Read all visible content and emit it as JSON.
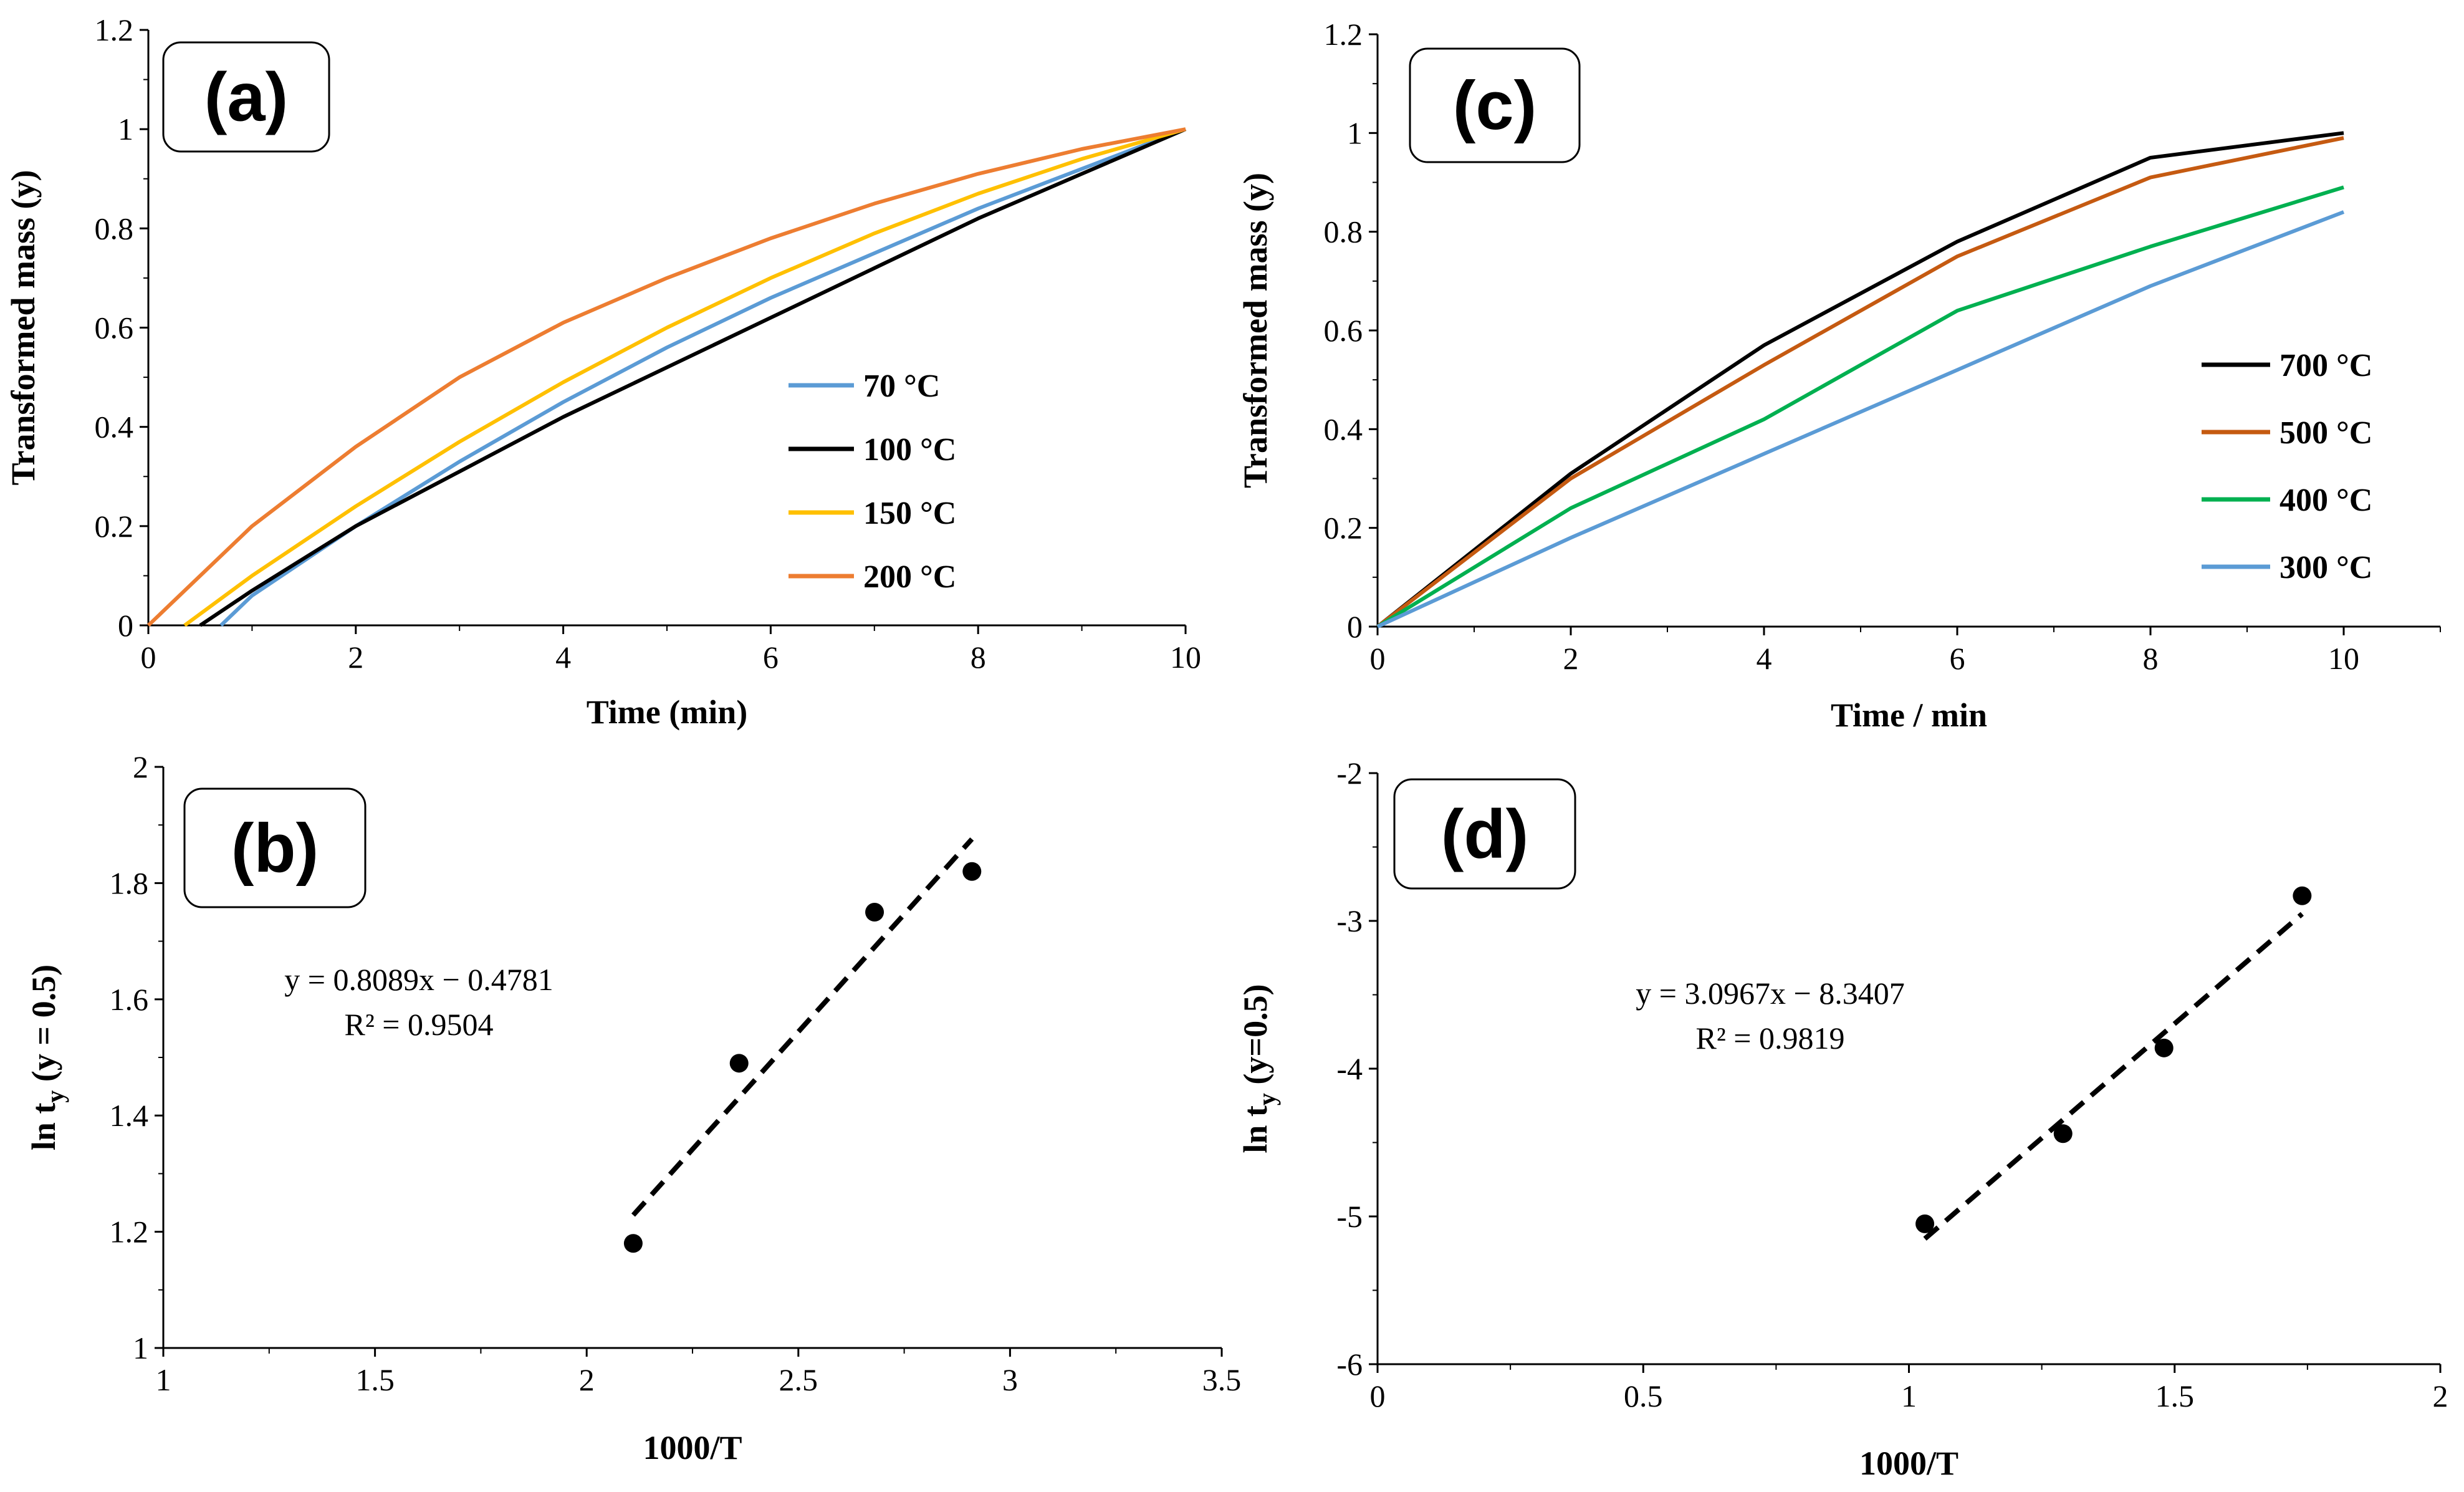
{
  "chart_data": [
    {
      "id": "a",
      "type": "line",
      "panel_label": "(a)",
      "xlabel": "Time  (min)",
      "ylabel": "Transformed  mass (y)",
      "xlim": [
        0,
        10
      ],
      "ylim": [
        0,
        1.2
      ],
      "xticks": [
        "0",
        "2",
        "4",
        "6",
        "8",
        "10"
      ],
      "yticks": [
        "0",
        "0.2",
        "0.4",
        "0.6",
        "0.8",
        "1",
        "1.2"
      ],
      "legend_position": "right",
      "series": [
        {
          "name": "70 °C",
          "color": "#5B9BD5",
          "x": [
            0.7,
            1,
            2,
            3,
            4,
            5,
            6,
            7,
            8,
            9,
            10
          ],
          "y": [
            0,
            0.06,
            0.2,
            0.33,
            0.45,
            0.56,
            0.66,
            0.75,
            0.84,
            0.92,
            1.0
          ]
        },
        {
          "name": "100 °C",
          "color": "#000000",
          "x": [
            0.5,
            1,
            2,
            3,
            4,
            5,
            6,
            7,
            8,
            9,
            10
          ],
          "y": [
            0,
            0.07,
            0.2,
            0.31,
            0.42,
            0.52,
            0.62,
            0.72,
            0.82,
            0.91,
            1.0
          ]
        },
        {
          "name": "150 °C",
          "color": "#FFC000",
          "x": [
            0.35,
            1,
            2,
            3,
            4,
            5,
            6,
            7,
            8,
            9,
            10
          ],
          "y": [
            0,
            0.1,
            0.24,
            0.37,
            0.49,
            0.6,
            0.7,
            0.79,
            0.87,
            0.94,
            1.0
          ]
        },
        {
          "name": " 200 °C",
          "color": "#ED7D31",
          "x": [
            0,
            1,
            2,
            3,
            4,
            5,
            6,
            7,
            8,
            9,
            10
          ],
          "y": [
            0,
            0.2,
            0.36,
            0.5,
            0.61,
            0.7,
            0.78,
            0.85,
            0.91,
            0.96,
            1.0
          ]
        }
      ]
    },
    {
      "id": "b",
      "type": "scatter",
      "panel_label": "(b)",
      "xlabel": "1000/T",
      "ylabel": "ln t",
      "ylabel_sub": "y",
      "ylabel_tail": " (y = 0.5)",
      "xlim": [
        1,
        3.5
      ],
      "ylim": [
        1,
        2
      ],
      "xticks": [
        "1",
        "1.5",
        "2",
        "2.5",
        "3",
        "3.5"
      ],
      "yticks": [
        "1",
        "1.2",
        "1.4",
        "1.6",
        "1.8",
        "2"
      ],
      "points": {
        "x": [
          2.11,
          2.36,
          2.68,
          2.91
        ],
        "y": [
          1.18,
          1.49,
          1.75,
          1.82
        ]
      },
      "trendline": {
        "slope": 0.8089,
        "intercept": -0.4781,
        "x_range": [
          2.11,
          2.91
        ]
      },
      "equation": "y = 0.8089x − 0.4781",
      "r_squared": "R² = 0.9504"
    },
    {
      "id": "c",
      "type": "line",
      "panel_label": "(c)",
      "xlabel": "Time  /  min",
      "ylabel": "Transformed  mass (y)",
      "xlim": [
        0,
        11
      ],
      "ylim": [
        0,
        1.2
      ],
      "xticks": [
        "0",
        "2",
        "4",
        "6",
        "8",
        "10"
      ],
      "yticks": [
        "0",
        "0.2",
        "0.4",
        "0.6",
        "0.8",
        "1",
        "1.2"
      ],
      "legend_position": "right",
      "series": [
        {
          "name": "700 °C",
          "color": "#000000",
          "x": [
            0,
            2,
            4,
            6,
            8,
            10
          ],
          "y": [
            0,
            0.31,
            0.57,
            0.78,
            0.95,
            1.0
          ]
        },
        {
          "name": "500 °C",
          "color": "#C55A11",
          "x": [
            0,
            2,
            4,
            6,
            8,
            10
          ],
          "y": [
            0,
            0.3,
            0.53,
            0.75,
            0.91,
            0.99
          ]
        },
        {
          "name": "400 °C",
          "color": "#00B050",
          "x": [
            0,
            2,
            4,
            6,
            8,
            10
          ],
          "y": [
            0,
            0.24,
            0.42,
            0.64,
            0.77,
            0.89
          ]
        },
        {
          "name": "300 °C",
          "color": "#5B9BD5",
          "x": [
            0,
            2,
            4,
            6,
            8,
            10
          ],
          "y": [
            0,
            0.18,
            0.35,
            0.52,
            0.69,
            0.84
          ]
        }
      ]
    },
    {
      "id": "d",
      "type": "scatter",
      "panel_label": "(d)",
      "xlabel": "1000/T",
      "ylabel": "ln t",
      "ylabel_sub": "y",
      "ylabel_tail": " (y=0.5)",
      "xlim": [
        0,
        2
      ],
      "ylim": [
        -6,
        -2
      ],
      "xticks": [
        "0",
        "0.5",
        "1",
        "1.5",
        "2"
      ],
      "yticks": [
        "-6",
        "-5",
        "-4",
        "-3",
        "-2"
      ],
      "points": {
        "x": [
          1.03,
          1.29,
          1.48,
          1.74
        ],
        "y": [
          -5.05,
          -4.44,
          -3.86,
          -2.83
        ]
      },
      "trendline": {
        "slope": 3.0967,
        "intercept": -8.3407,
        "x_range": [
          1.03,
          1.74
        ]
      },
      "equation": "y = 3.0967x − 8.3407",
      "r_squared": "R² = 0.9819"
    }
  ]
}
